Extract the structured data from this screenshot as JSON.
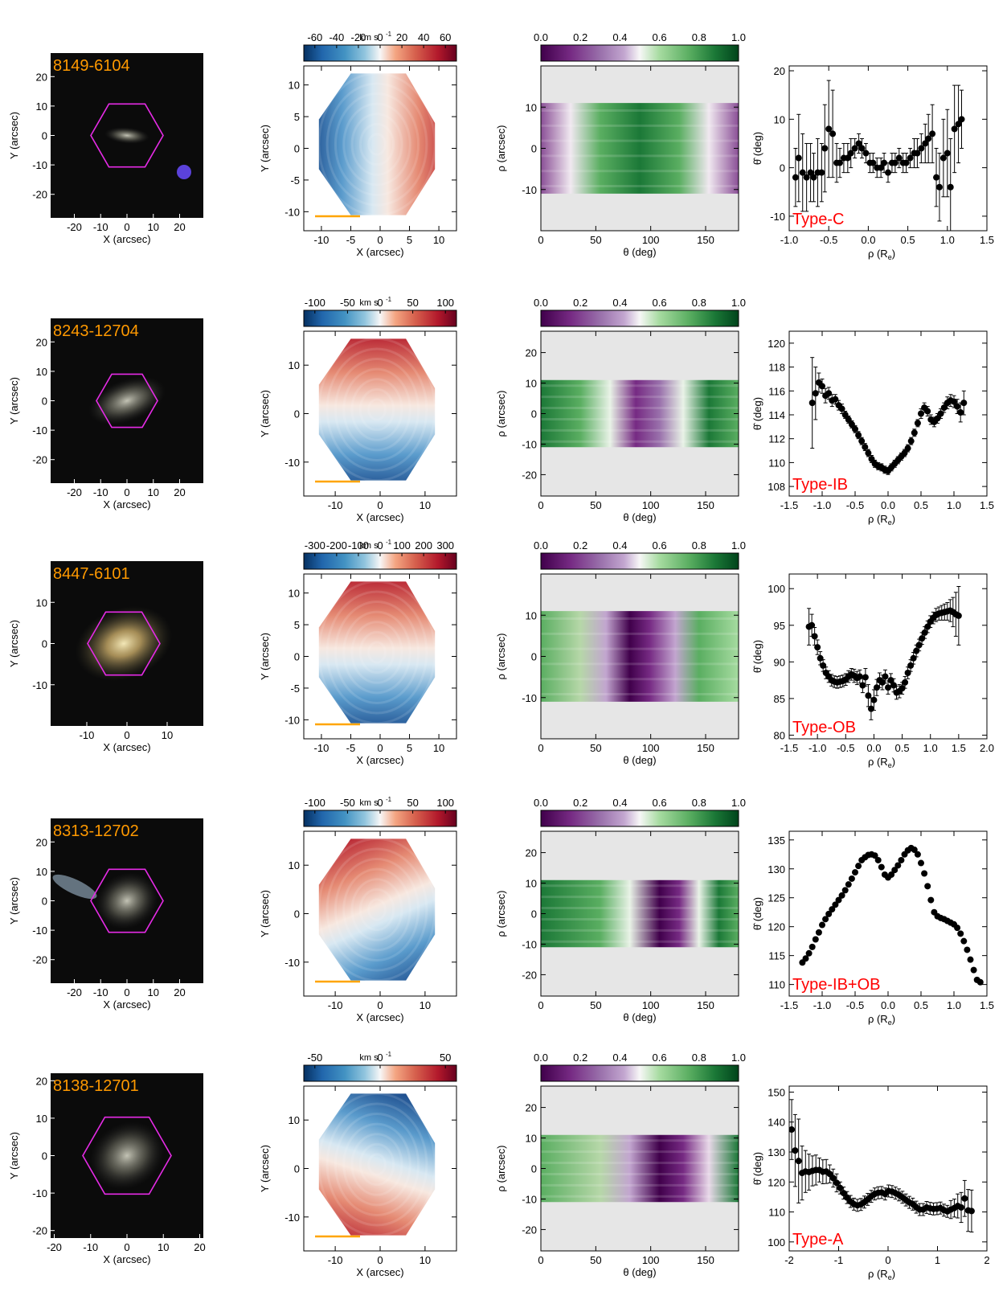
{
  "colors": {
    "label_orange": "#ff9900",
    "hexagon": "#e62be6",
    "type_red": "#ff0000",
    "panel_grey": "#e6e6e6",
    "scale_bar": "#ffa500"
  },
  "common": {
    "x_arcsec": "X (arcsec)",
    "y_arcsec": "Y (arcsec)",
    "rho_arcsec": "ρ (arcsec)",
    "theta_deg": "θ (deg)",
    "theta_hat_deg": "θ̂ (deg)",
    "rho_re": "ρ (R",
    "rho_re_sub": "e",
    "rho_re_close": ")",
    "vel_unit": "km s",
    "vel_unit_sup": "-1",
    "cbar_ticks": [
      "0.0",
      "0.2",
      "0.4",
      "0.6",
      "0.8",
      "1.0"
    ]
  },
  "rows": [
    {
      "galaxy_id": "8149-6104",
      "type_label": "Type-C",
      "image": {
        "xticks": [
          "-20",
          "-10",
          "0",
          "10",
          "20"
        ],
        "yticks": [
          "20",
          "10",
          "0",
          "-10",
          "-20"
        ]
      },
      "velocity": {
        "cbar_ticks": [
          "-60",
          "-40",
          "-20",
          "0",
          "20",
          "40",
          "60"
        ],
        "xticks": [
          "-10",
          "-5",
          "0",
          "5",
          "10"
        ],
        "yticks": [
          "10",
          "5",
          "0",
          "-5",
          "-10"
        ]
      },
      "map": {
        "xticks": [
          "0",
          "50",
          "100",
          "150"
        ],
        "yticks": [
          "10",
          "0",
          "-10"
        ]
      }
    },
    {
      "galaxy_id": "8243-12704",
      "type_label": "Type-IB",
      "image": {
        "xticks": [
          "-20",
          "-10",
          "0",
          "10",
          "20"
        ],
        "yticks": [
          "20",
          "10",
          "0",
          "-10",
          "-20"
        ]
      },
      "velocity": {
        "cbar_ticks": [
          "-100",
          "-50",
          "0",
          "50",
          "100"
        ],
        "xticks": [
          "-10",
          "0",
          "10"
        ],
        "yticks": [
          "10",
          "0",
          "-10"
        ]
      },
      "map": {
        "xticks": [
          "0",
          "50",
          "100",
          "150"
        ],
        "yticks": [
          "20",
          "10",
          "0",
          "-10",
          "-20"
        ]
      }
    },
    {
      "galaxy_id": "8447-6101",
      "type_label": "Type-OB",
      "image": {
        "xticks": [
          "-10",
          "0",
          "10"
        ],
        "yticks": [
          "10",
          "0",
          "-10"
        ]
      },
      "velocity": {
        "cbar_ticks": [
          "-300",
          "-200",
          "-100",
          "0",
          "100",
          "200",
          "300"
        ],
        "xticks": [
          "-10",
          "-5",
          "0",
          "5",
          "10"
        ],
        "yticks": [
          "10",
          "5",
          "0",
          "-5",
          "-10"
        ]
      },
      "map": {
        "xticks": [
          "0",
          "50",
          "100",
          "150"
        ],
        "yticks": [
          "10",
          "0",
          "-10"
        ]
      }
    },
    {
      "galaxy_id": "8313-12702",
      "type_label": "Type-IB+OB",
      "image": {
        "xticks": [
          "-20",
          "-10",
          "0",
          "10",
          "20"
        ],
        "yticks": [
          "20",
          "10",
          "0",
          "-10",
          "-20"
        ]
      },
      "velocity": {
        "cbar_ticks": [
          "-100",
          "-50",
          "0",
          "50",
          "100"
        ],
        "xticks": [
          "-10",
          "0",
          "10"
        ],
        "yticks": [
          "10",
          "0",
          "-10"
        ]
      },
      "map": {
        "xticks": [
          "0",
          "50",
          "100",
          "150"
        ],
        "yticks": [
          "20",
          "10",
          "0",
          "-10",
          "-20"
        ]
      }
    },
    {
      "galaxy_id": "8138-12701",
      "type_label": "Type-A",
      "image": {
        "xticks": [
          "-20",
          "-10",
          "0",
          "10",
          "20"
        ],
        "yticks": [
          "20",
          "10",
          "0",
          "-10",
          "-20"
        ]
      },
      "velocity": {
        "cbar_ticks": [
          "-50",
          "0",
          "50"
        ],
        "xticks": [
          "-10",
          "0",
          "10"
        ],
        "yticks": [
          "10",
          "0",
          "-10"
        ]
      },
      "map": {
        "xticks": [
          "0",
          "50",
          "100",
          "150"
        ],
        "yticks": [
          "20",
          "10",
          "0",
          "-10",
          "-20"
        ]
      }
    }
  ],
  "chart_data": [
    {
      "type": "scatter",
      "title": "",
      "xlabel": "ρ (Re)",
      "ylabel": "θ̂ (deg)",
      "annotation": "Type-C",
      "xlim": [
        -1.0,
        1.5
      ],
      "ylim": [
        -13,
        21
      ],
      "xticks": [
        -1.0,
        -0.5,
        0.0,
        0.5,
        1.0,
        1.5
      ],
      "yticks": [
        -10,
        0,
        10,
        20
      ],
      "x": [
        -0.92,
        -0.88,
        -0.83,
        -0.78,
        -0.73,
        -0.69,
        -0.64,
        -0.59,
        -0.55,
        -0.5,
        -0.45,
        -0.4,
        -0.36,
        -0.31,
        -0.26,
        -0.22,
        -0.17,
        -0.12,
        -0.08,
        -0.03,
        0.02,
        0.06,
        0.11,
        0.16,
        0.2,
        0.25,
        0.3,
        0.34,
        0.39,
        0.44,
        0.48,
        0.53,
        0.58,
        0.62,
        0.67,
        0.72,
        0.76,
        0.81,
        0.86,
        0.9,
        0.95,
        1.0,
        1.04,
        1.09,
        1.14,
        1.18
      ],
      "y": [
        -2,
        2,
        -1,
        -2,
        -1,
        -2,
        -1,
        -1,
        4,
        8,
        7,
        1,
        1,
        2,
        2,
        3,
        4,
        5,
        4,
        3,
        1,
        1,
        0,
        0,
        1,
        -1,
        1,
        1,
        2,
        1,
        1,
        2,
        3,
        3,
        4,
        5,
        6,
        7,
        -2,
        -4,
        2,
        3,
        -4,
        8,
        9,
        10
      ],
      "err": [
        6,
        9,
        8,
        7,
        6,
        5,
        7,
        6,
        9,
        10,
        9,
        4,
        3,
        3,
        3,
        3,
        2,
        2,
        2,
        2,
        2,
        2,
        2,
        2,
        2,
        2,
        2,
        2,
        2,
        2,
        2,
        2,
        3,
        3,
        3,
        4,
        5,
        6,
        6,
        7,
        8,
        9,
        10,
        9,
        8,
        6
      ]
    },
    {
      "type": "scatter",
      "title": "",
      "xlabel": "ρ (Re)",
      "ylabel": "θ̂ (deg)",
      "annotation": "Type-IB",
      "xlim": [
        -1.5,
        1.5
      ],
      "ylim": [
        107.2,
        121
      ],
      "xticks": [
        -1.5,
        -1.0,
        -0.5,
        0.0,
        0.5,
        1.0,
        1.5
      ],
      "yticks": [
        108,
        110,
        112,
        114,
        116,
        118,
        120
      ],
      "x": [
        -1.15,
        -1.1,
        -1.05,
        -1.0,
        -0.95,
        -0.9,
        -0.85,
        -0.8,
        -0.75,
        -0.7,
        -0.65,
        -0.6,
        -0.55,
        -0.5,
        -0.45,
        -0.4,
        -0.35,
        -0.3,
        -0.25,
        -0.2,
        -0.15,
        -0.1,
        -0.05,
        0.0,
        0.05,
        0.1,
        0.15,
        0.2,
        0.25,
        0.3,
        0.35,
        0.4,
        0.45,
        0.5,
        0.55,
        0.6,
        0.65,
        0.7,
        0.75,
        0.8,
        0.85,
        0.9,
        0.95,
        1.0,
        1.05,
        1.1,
        1.15
      ],
      "y": [
        115.0,
        115.8,
        116.7,
        116.4,
        115.6,
        115.8,
        115.2,
        115.3,
        114.8,
        114.5,
        114.0,
        113.6,
        113.2,
        112.8,
        112.3,
        111.8,
        111.3,
        110.8,
        110.3,
        109.9,
        109.7,
        109.6,
        109.4,
        109.3,
        109.6,
        109.9,
        110.2,
        110.5,
        110.8,
        111.2,
        111.8,
        112.5,
        113.3,
        114.1,
        114.6,
        114.3,
        113.6,
        113.4,
        113.7,
        114.1,
        114.6,
        115.0,
        115.2,
        115.1,
        114.7,
        114.2,
        115.0
      ],
      "err": [
        3.8,
        2.2,
        0.8,
        0.6,
        0.6,
        0.5,
        0.5,
        0.4,
        0.4,
        0.4,
        0.3,
        0.3,
        0.3,
        0.3,
        0.3,
        0.3,
        0.3,
        0.3,
        0.3,
        0.3,
        0.3,
        0.3,
        0.3,
        0.3,
        0.3,
        0.3,
        0.3,
        0.3,
        0.3,
        0.3,
        0.3,
        0.3,
        0.3,
        0.4,
        0.4,
        0.4,
        0.4,
        0.4,
        0.4,
        0.4,
        0.4,
        0.5,
        0.5,
        0.5,
        0.6,
        0.8,
        1.0
      ]
    },
    {
      "type": "scatter",
      "title": "",
      "xlabel": "ρ (Re)",
      "ylabel": "θ̂ (deg)",
      "annotation": "Type-OB",
      "xlim": [
        -1.5,
        2.0
      ],
      "ylim": [
        79.5,
        102
      ],
      "xticks": [
        -1.5,
        -1.0,
        -0.5,
        0.0,
        0.5,
        1.0,
        1.5,
        2.0
      ],
      "yticks": [
        80,
        85,
        90,
        95,
        100
      ],
      "x": [
        -1.15,
        -1.1,
        -1.05,
        -1.0,
        -0.95,
        -0.9,
        -0.85,
        -0.8,
        -0.75,
        -0.7,
        -0.65,
        -0.6,
        -0.55,
        -0.5,
        -0.45,
        -0.4,
        -0.35,
        -0.3,
        -0.25,
        -0.2,
        -0.15,
        -0.1,
        -0.05,
        0.0,
        0.05,
        0.1,
        0.15,
        0.2,
        0.25,
        0.3,
        0.35,
        0.4,
        0.45,
        0.5,
        0.55,
        0.6,
        0.65,
        0.7,
        0.75,
        0.8,
        0.85,
        0.9,
        0.95,
        1.0,
        1.05,
        1.1,
        1.15,
        1.2,
        1.25,
        1.3,
        1.35,
        1.4,
        1.45,
        1.5
      ],
      "y": [
        94.8,
        95.0,
        93.5,
        92.0,
        90.5,
        89.5,
        88.5,
        88.0,
        87.5,
        87.3,
        87.2,
        87.3,
        87.4,
        87.6,
        88.0,
        88.3,
        88.1,
        87.8,
        88.0,
        86.8,
        87.9,
        85.4,
        83.6,
        84.8,
        86.5,
        87.5,
        87.2,
        88.0,
        86.5,
        87.5,
        86.8,
        85.8,
        86.0,
        86.4,
        87.2,
        88.5,
        89.5,
        90.5,
        91.5,
        92.3,
        93.2,
        94.0,
        94.8,
        95.5,
        96.0,
        96.4,
        96.6,
        96.7,
        96.8,
        96.9,
        97.0,
        96.8,
        96.5,
        96.3
      ],
      "err": [
        2.5,
        1.5,
        1.2,
        1.0,
        0.9,
        0.8,
        0.8,
        0.8,
        0.8,
        0.8,
        0.8,
        0.8,
        0.8,
        0.8,
        0.8,
        0.8,
        0.9,
        0.9,
        0.9,
        1.0,
        1.2,
        1.5,
        1.5,
        1.4,
        1.1,
        1.0,
        1.0,
        0.9,
        0.9,
        0.9,
        0.9,
        0.9,
        0.9,
        0.8,
        0.8,
        0.8,
        0.8,
        0.8,
        0.8,
        0.8,
        0.8,
        0.8,
        0.8,
        0.8,
        0.8,
        0.9,
        0.9,
        1.0,
        1.1,
        1.2,
        1.5,
        2.0,
        3.0,
        4.0
      ]
    },
    {
      "type": "scatter",
      "title": "",
      "xlabel": "ρ (Re)",
      "ylabel": "θ̂ (deg)",
      "annotation": "Type-IB+OB",
      "xlim": [
        -1.5,
        1.5
      ],
      "ylim": [
        108,
        136.5
      ],
      "xticks": [
        -1.5,
        -1.0,
        -0.5,
        0.0,
        0.5,
        1.0,
        1.5
      ],
      "yticks": [
        110,
        115,
        120,
        125,
        130,
        135
      ],
      "x": [
        -1.3,
        -1.25,
        -1.2,
        -1.15,
        -1.1,
        -1.05,
        -1.0,
        -0.95,
        -0.9,
        -0.85,
        -0.8,
        -0.75,
        -0.7,
        -0.65,
        -0.6,
        -0.55,
        -0.5,
        -0.45,
        -0.4,
        -0.35,
        -0.3,
        -0.25,
        -0.2,
        -0.15,
        -0.1,
        -0.05,
        0.0,
        0.05,
        0.1,
        0.15,
        0.2,
        0.25,
        0.3,
        0.35,
        0.4,
        0.45,
        0.5,
        0.55,
        0.6,
        0.65,
        0.7,
        0.75,
        0.8,
        0.85,
        0.9,
        0.95,
        1.0,
        1.05,
        1.1,
        1.15,
        1.2,
        1.25,
        1.3,
        1.35,
        1.4
      ],
      "y": [
        113.8,
        114.5,
        115.4,
        116.5,
        117.8,
        119.0,
        120.3,
        121.3,
        122.2,
        123.0,
        123.8,
        124.6,
        125.4,
        126.3,
        127.3,
        128.3,
        129.4,
        130.5,
        131.5,
        132.0,
        132.4,
        132.5,
        132.3,
        131.5,
        130.3,
        129.0,
        128.5,
        129.0,
        129.8,
        130.6,
        131.5,
        132.5,
        133.2,
        133.6,
        133.3,
        132.5,
        131.0,
        129.2,
        127.0,
        124.6,
        122.5,
        121.8,
        121.5,
        121.3,
        121.0,
        120.7,
        120.4,
        119.8,
        118.8,
        117.5,
        116.0,
        114.3,
        112.5,
        110.8,
        110.4
      ]
    },
    {
      "type": "scatter",
      "title": "",
      "xlabel": "ρ (Re)",
      "ylabel": "θ̂ (deg)",
      "annotation": "Type-A",
      "xlim": [
        -2,
        2
      ],
      "ylim": [
        97,
        152
      ],
      "xticks": [
        -2,
        -1,
        0,
        1,
        2
      ],
      "yticks": [
        100,
        110,
        120,
        130,
        140,
        150
      ],
      "x": [
        -1.95,
        -1.88,
        -1.81,
        -1.74,
        -1.67,
        -1.6,
        -1.53,
        -1.46,
        -1.39,
        -1.32,
        -1.25,
        -1.18,
        -1.11,
        -1.04,
        -0.97,
        -0.9,
        -0.83,
        -0.76,
        -0.69,
        -0.62,
        -0.55,
        -0.48,
        -0.41,
        -0.34,
        -0.27,
        -0.2,
        -0.13,
        -0.06,
        0.01,
        0.08,
        0.15,
        0.22,
        0.29,
        0.36,
        0.43,
        0.5,
        0.57,
        0.64,
        0.71,
        0.78,
        0.85,
        0.92,
        0.99,
        1.06,
        1.13,
        1.2,
        1.27,
        1.34,
        1.41,
        1.48,
        1.55,
        1.62,
        1.69
      ],
      "y": [
        137.5,
        130.5,
        127.0,
        123.0,
        123.5,
        123.3,
        123.7,
        124.0,
        124.0,
        123.4,
        123.5,
        122.7,
        121.3,
        119.7,
        118.0,
        116.3,
        114.8,
        113.5,
        112.6,
        112.2,
        112.5,
        113.3,
        114.2,
        115.2,
        116.0,
        116.4,
        116.5,
        116.0,
        117.0,
        116.8,
        116.3,
        115.7,
        114.9,
        114.0,
        113.2,
        112.6,
        111.6,
        110.8,
        110.8,
        111.5,
        111.2,
        111.0,
        111.1,
        111.3,
        110.6,
        110.2,
        110.8,
        111.3,
        112.0,
        111.5,
        114.5,
        110.5,
        110.3
      ],
      "err": [
        10,
        12,
        14,
        9,
        7,
        6,
        5,
        5,
        4,
        4,
        4,
        3,
        3,
        3,
        2,
        2,
        2,
        2,
        2,
        2,
        2,
        2,
        2,
        2,
        2,
        2,
        2,
        2,
        2,
        2,
        2,
        2,
        2,
        2,
        2,
        2,
        2,
        2,
        2,
        2,
        2,
        2,
        2,
        2,
        2,
        2,
        3,
        3,
        4,
        5,
        6,
        7,
        7
      ]
    }
  ]
}
